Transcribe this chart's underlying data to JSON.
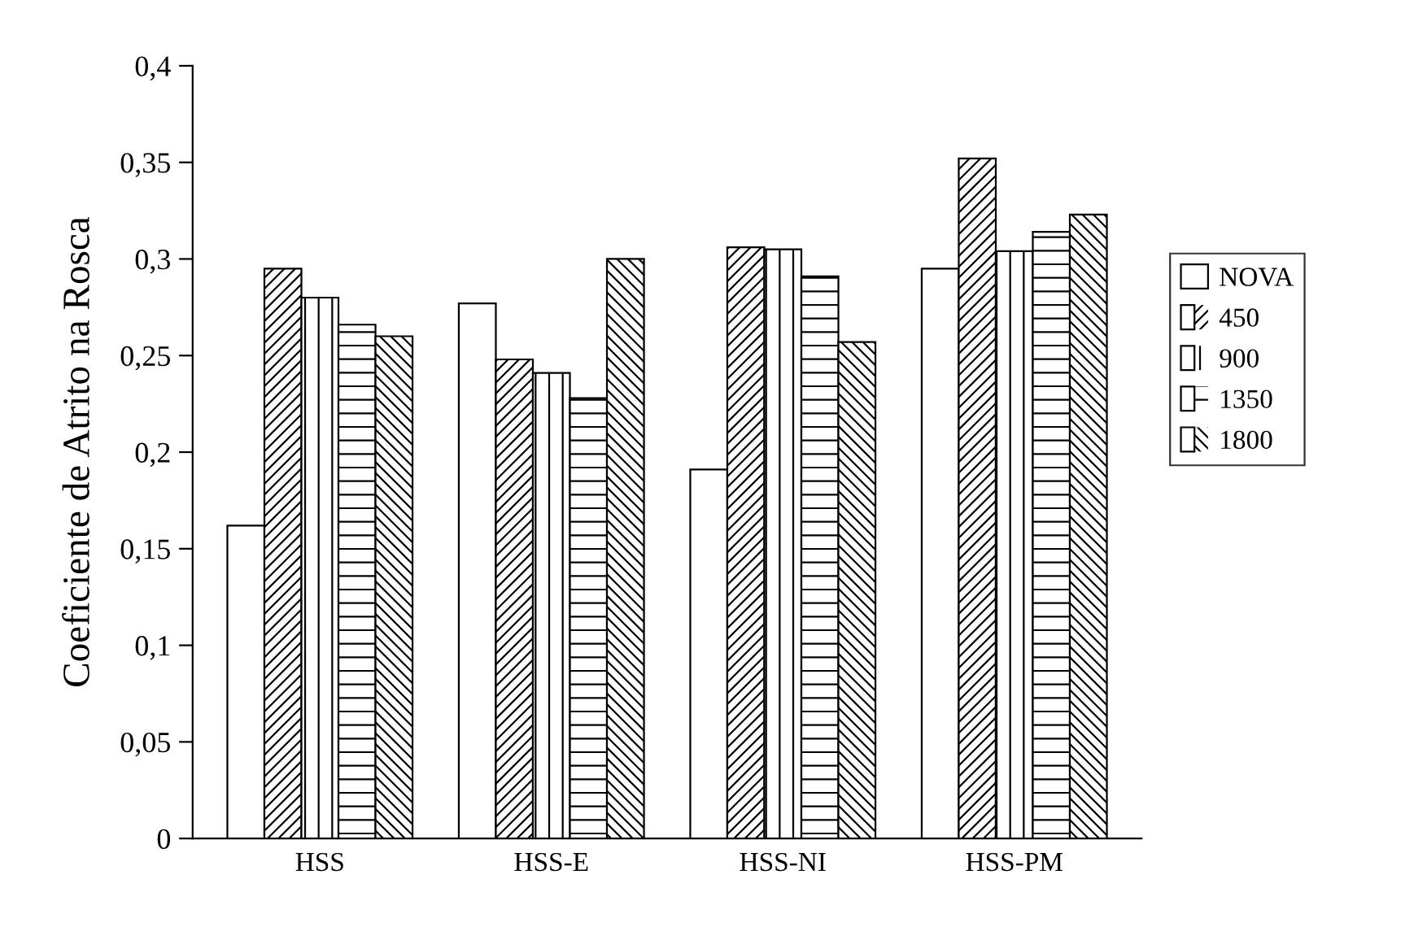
{
  "chart_data": {
    "type": "bar",
    "ylabel": "Coeficiente de Atrito na Rosca",
    "categories": [
      "HSS",
      "HSS-E",
      "HSS-NI",
      "HSS-PM"
    ],
    "series": [
      {
        "name": "NOVA",
        "color": "#ffffff",
        "values": [
          0.162,
          0.277,
          0.191,
          0.295
        ]
      },
      {
        "name": "450",
        "color": "#ffffff",
        "values": [
          0.295,
          0.248,
          0.306,
          0.352
        ]
      },
      {
        "name": "900",
        "color": "#ffffff",
        "values": [
          0.28,
          0.241,
          0.305,
          0.304
        ]
      },
      {
        "name": "1350",
        "color": "#ffffff",
        "values": [
          0.266,
          0.228,
          0.291,
          0.314
        ]
      },
      {
        "name": "1800",
        "color": "#ffffff",
        "values": [
          0.26,
          0.3,
          0.257,
          0.323
        ]
      }
    ],
    "ylim": [
      0,
      0.4
    ],
    "yticks": [
      0,
      {
        "value": 0.05,
        "label": "0,05"
      },
      {
        "value": 0.1,
        "label": "0,1"
      },
      {
        "value": 0.15,
        "label": "0,15"
      },
      {
        "value": 0.2,
        "label": "0,2"
      },
      {
        "value": 0.25,
        "label": "0,25"
      },
      {
        "value": 0.3,
        "label": "0,3"
      },
      {
        "value": 0.35,
        "label": "0,35"
      },
      {
        "value": 0.4,
        "label": "0,4"
      }
    ],
    "grid": false,
    "legend": "right"
  }
}
